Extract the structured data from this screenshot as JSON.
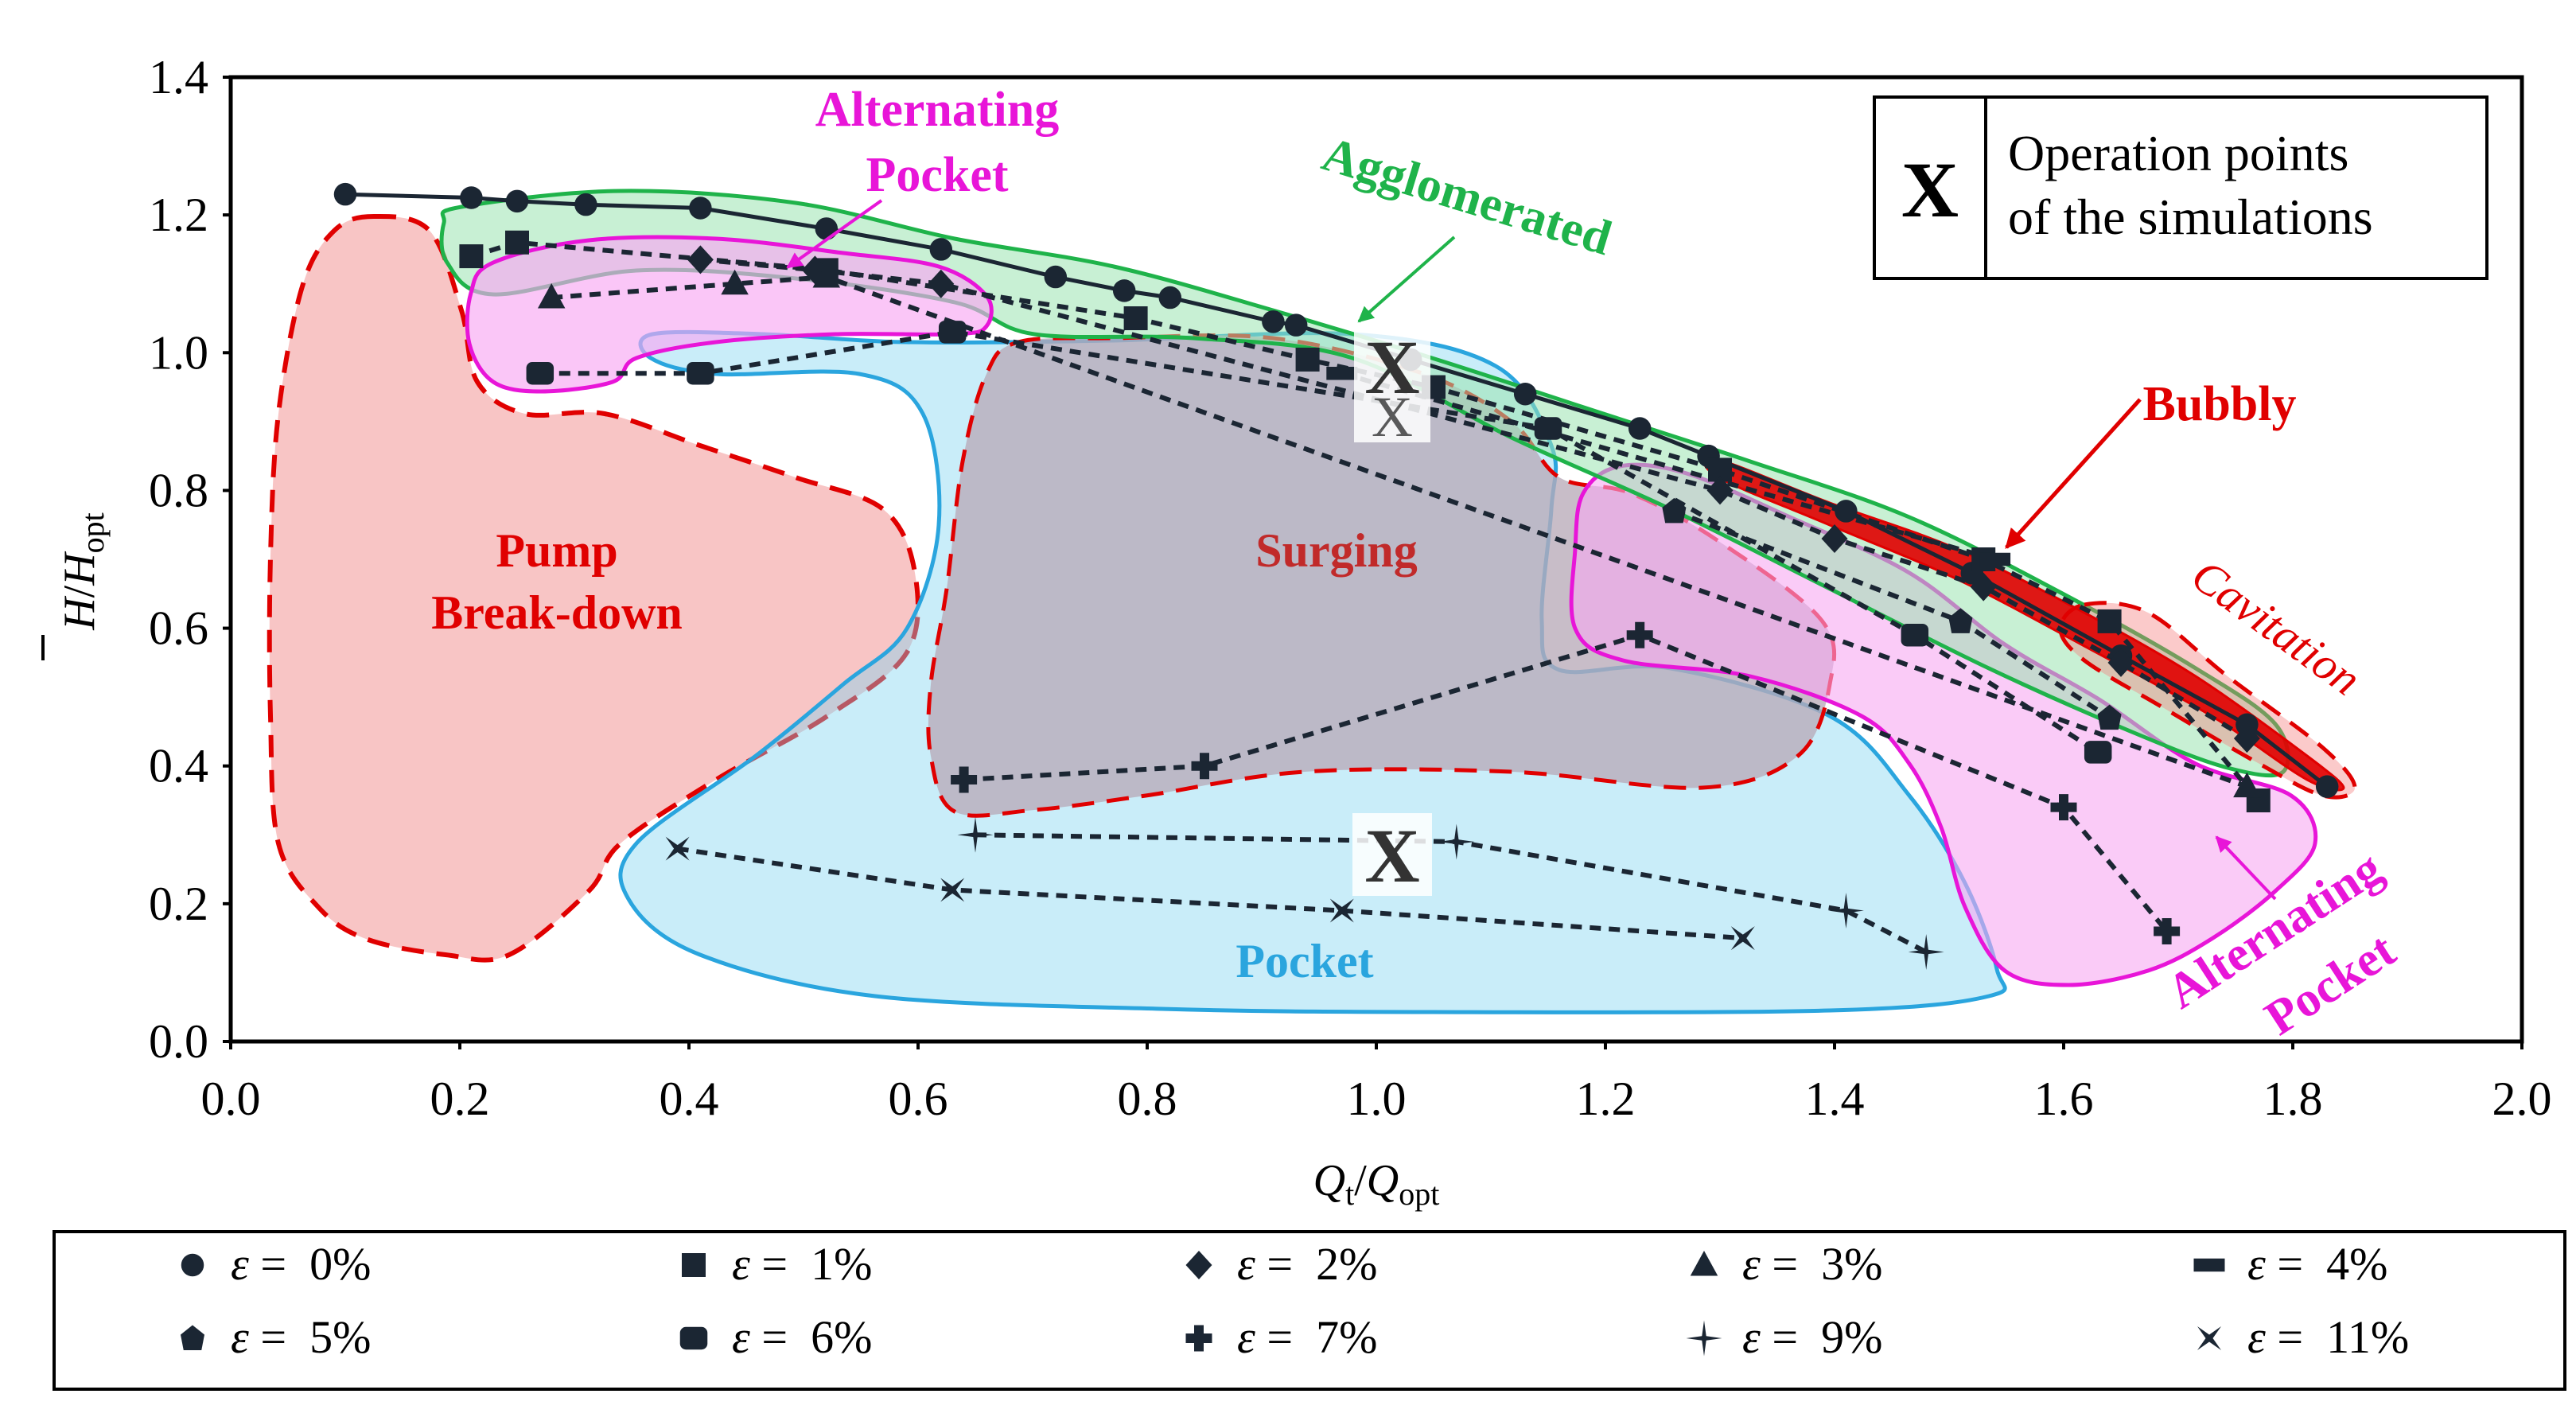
{
  "chart_data": {
    "type": "line",
    "xlabel": {
      "main": "Q",
      "sub1": "t",
      "slash": "/",
      "main2": "Q",
      "sub2": "opt"
    },
    "ylabel": {
      "main": "H",
      "slash": "/",
      "main2": "H",
      "sub2": "opt"
    },
    "xlim": [
      0.0,
      2.0
    ],
    "ylim": [
      0.0,
      1.4
    ],
    "xticks": [
      "0.0",
      "0.2",
      "0.4",
      "0.6",
      "0.8",
      "1.0",
      "1.2",
      "1.4",
      "1.6",
      "1.8",
      "2.0"
    ],
    "yticks": [
      "0.0",
      "0.2",
      "0.4",
      "0.6",
      "0.8",
      "1.0",
      "1.2",
      "1.4"
    ],
    "grid": false,
    "legend_position": "bottom",
    "series": [
      {
        "name": "ε =  0%",
        "marker": "circle",
        "x": [
          0.1,
          0.21,
          0.25,
          0.31,
          0.41,
          0.52,
          0.62,
          0.72,
          0.78,
          0.82,
          0.91,
          0.93,
          1.03,
          1.13,
          1.23,
          1.29,
          1.41,
          1.52,
          1.65,
          1.76,
          1.83
        ],
        "y": [
          1.23,
          1.225,
          1.22,
          1.215,
          1.21,
          1.18,
          1.15,
          1.11,
          1.09,
          1.08,
          1.045,
          1.04,
          0.99,
          0.94,
          0.89,
          0.85,
          0.77,
          0.68,
          0.56,
          0.46,
          0.37
        ]
      },
      {
        "name": "ε =  1%",
        "marker": "square",
        "x": [
          0.21,
          0.25,
          0.52,
          0.79,
          0.94,
          1.05,
          1.3,
          1.53,
          1.64,
          1.77
        ],
        "y": [
          1.14,
          1.16,
          1.12,
          1.05,
          0.99,
          0.95,
          0.83,
          0.7,
          0.61,
          0.35
        ]
      },
      {
        "name": "ε =  2%",
        "marker": "diamond",
        "x": [
          0.41,
          0.51,
          0.62,
          1.3,
          1.4,
          1.53,
          1.65,
          1.76
        ],
        "y": [
          1.135,
          1.12,
          1.1,
          0.8,
          0.73,
          0.66,
          0.55,
          0.44
        ]
      },
      {
        "name": "ε =  3%",
        "marker": "triangle",
        "x": [
          0.28,
          0.44,
          0.52,
          1.76
        ],
        "y": [
          1.08,
          1.1,
          1.11,
          0.37
        ]
      },
      {
        "name": "ε =  4%",
        "marker": "bar",
        "x": [
          0.97,
          1.54
        ],
        "y": [
          0.97,
          0.7
        ]
      },
      {
        "name": "ε =  5%",
        "marker": "pentagon",
        "x": [
          1.26,
          1.51,
          1.64
        ],
        "y": [
          0.77,
          0.61,
          0.47
        ]
      },
      {
        "name": "ε =  6%",
        "marker": "rounded-square",
        "x": [
          0.27,
          0.41,
          0.63,
          1.15,
          1.47,
          1.63
        ],
        "y": [
          0.97,
          0.97,
          1.03,
          0.89,
          0.59,
          0.42
        ]
      },
      {
        "name": "ε =  7%",
        "marker": "plus-bold",
        "x": [
          0.64,
          0.85,
          1.23,
          1.6,
          1.69
        ],
        "y": [
          0.38,
          0.4,
          0.59,
          0.34,
          0.16
        ]
      },
      {
        "name": "ε =  9%",
        "marker": "thin-cross",
        "x": [
          0.65,
          1.07,
          1.41,
          1.48
        ],
        "y": [
          0.3,
          0.29,
          0.19,
          0.13
        ]
      },
      {
        "name": "ε =  11%",
        "marker": "x-bowtie",
        "x": [
          0.39,
          0.63,
          0.97,
          1.32
        ],
        "y": [
          0.28,
          0.22,
          0.19,
          0.15
        ]
      }
    ],
    "annotations": {
      "pump_breakdown": [
        "Pump",
        "Break-down"
      ],
      "surging": "Surging",
      "pocket": "Pocket",
      "alt_pocket_top": [
        "Alternating",
        "Pocket"
      ],
      "alt_pocket_right": [
        "Alternating",
        "Pocket"
      ],
      "agglomerated": "Agglomerated",
      "bubbly": "Bubbly",
      "cavitation": "Cavitation",
      "sim_mark": "X",
      "sim_legend_mark": "X",
      "sim_legend_text": [
        "Operation points",
        "of the simulations"
      ]
    },
    "colors": {
      "breakdown": "#f4a6a6",
      "surging": "#b8aab8",
      "pocket": "#7fd4f0",
      "alternating": "#f7a8f2",
      "agglomerated": "#9be3b0",
      "red": "#e00000",
      "green": "#1fb34a",
      "blue": "#2aa5de",
      "magenta": "#e815d8",
      "series": "#1b2633"
    }
  }
}
